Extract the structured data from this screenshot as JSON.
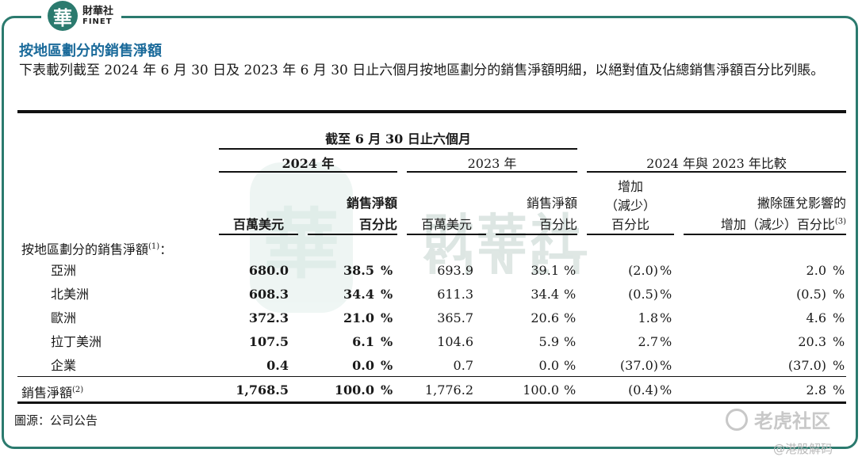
{
  "logo": {
    "glyph": "華",
    "name_cn": "財華社",
    "name_en": "FINET"
  },
  "title": "按地區劃分的銷售淨額",
  "intro": "下表載列截至 2024 年 6 月 30 日及 2023 年 6 月 30 日止六個月按地區劃分的銷售淨額明細，以絕對值及佔總銷售淨額百分比列賬。",
  "header": {
    "period": "截至 6 月 30 日止六個月",
    "y2024": "2024 年",
    "y2023": "2023 年",
    "compare": "2024 年與 2023 年比較",
    "col_usd": "百萬美元",
    "col_pct_l1": "銷售淨額",
    "col_pct_l2": "百分比",
    "col_chg_l1": "增加",
    "col_chg_l2": "（減少）",
    "col_chg_l3": "百分比",
    "col_fx_l1": "撇除匯兌影響的",
    "col_fx_l2": "增加（減少）百分比",
    "col_fx_note": "(3)"
  },
  "section_label": "按地區劃分的銷售淨額",
  "section_note": "(1)",
  "section_colon": "：",
  "rows": [
    {
      "label": "亞洲",
      "usd24": "680.0",
      "pct24": "38.5",
      "usd23": "693.9",
      "pct23": "39.1",
      "chg": "(2.0)",
      "fx": "2.0"
    },
    {
      "label": "北美洲",
      "usd24": "608.3",
      "pct24": "34.4",
      "usd23": "611.3",
      "pct23": "34.4",
      "chg": "(0.5)",
      "fx": "(0.5)"
    },
    {
      "label": "歐洲",
      "usd24": "372.3",
      "pct24": "21.0",
      "usd23": "365.7",
      "pct23": "20.6",
      "chg": "1.8",
      "fx": "4.6"
    },
    {
      "label": "拉丁美洲",
      "usd24": "107.5",
      "pct24": "6.1",
      "usd23": "104.6",
      "pct23": "5.9",
      "chg": "2.7",
      "fx": "20.3"
    },
    {
      "label": "企業",
      "usd24": "0.4",
      "pct24": "0.0",
      "usd23": "0.7",
      "pct23": "0.0",
      "chg": "(37.0)",
      "fx": "(37.0)"
    }
  ],
  "total": {
    "label": "銷售淨額",
    "note": "(2)",
    "usd24": "1,768.5",
    "pct24": "100.0",
    "usd23": "1,776.2",
    "pct23": "100.0",
    "chg": "(0.4)",
    "fx": "2.8"
  },
  "pct_sign": "%",
  "source": "圖源：公司公告",
  "watermark": {
    "tiger": "老虎社区",
    "tiger_sub": "@港股解码",
    "finet_cn": "財華社",
    "finet_en": "FINET"
  }
}
